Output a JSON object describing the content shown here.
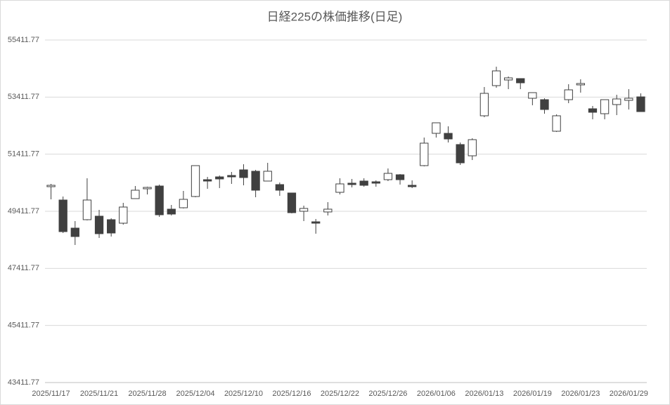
{
  "chart_data": {
    "type": "candlestick",
    "title": "日経225の株価推移(日足)",
    "categories": [
      "2025/11/17",
      null,
      null,
      null,
      "2025/11/21",
      null,
      null,
      null,
      "2025/11/28",
      null,
      null,
      null,
      "2025/12/04",
      null,
      null,
      null,
      "2025/12/10",
      null,
      null,
      null,
      "2025/12/16",
      null,
      null,
      null,
      "2025/12/22",
      null,
      null,
      null,
      "2025/12/26",
      null,
      null,
      null,
      "2026/01/06",
      null,
      null,
      null,
      "2026/01/13",
      null,
      null,
      null,
      "2026/01/19",
      null,
      null,
      null,
      "2026/01/23",
      null,
      null,
      null,
      "2026/01/29",
      null
    ],
    "open": [
      50273,
      49806,
      48822,
      49117,
      49240,
      49117,
      48994,
      49855,
      50199,
      50297,
      49486,
      49535,
      49929,
      50519,
      50617,
      50666,
      50863,
      50814,
      50470,
      50347,
      50052,
      49412,
      49043,
      49388,
      50076,
      50396,
      50470,
      50445,
      50519,
      50691,
      50322,
      51011,
      52142,
      52142,
      51749,
      51355,
      52757,
      53814,
      54011,
      54060,
      53371,
      53322,
      52216,
      53322,
      53839,
      53003,
      52830,
      53150,
      53298,
      53420
    ],
    "high": [
      50370,
      49929,
      49068,
      50568,
      49461,
      49166,
      49707,
      50297,
      50273,
      50347,
      49633,
      50125,
      51011,
      50617,
      50666,
      50789,
      51060,
      50863,
      51109,
      50420,
      50052,
      49609,
      49142,
      49732,
      50568,
      50544,
      50568,
      50494,
      50912,
      50716,
      50494,
      51995,
      52511,
      52388,
      51822,
      51970,
      53765,
      54478,
      54134,
      54060,
      53568,
      53371,
      52806,
      53863,
      54036,
      53101,
      53322,
      53494,
      53691,
      53543
    ],
    "low": [
      49830,
      48650,
      48232,
      49093,
      48478,
      48527,
      48945,
      49855,
      50002,
      49216,
      49265,
      49511,
      49904,
      50199,
      50224,
      50371,
      50322,
      49904,
      50470,
      49953,
      49339,
      49068,
      48626,
      49265,
      50002,
      50248,
      50273,
      50273,
      50470,
      50347,
      50224,
      50986,
      51995,
      51822,
      51035,
      51207,
      52708,
      53740,
      53691,
      53691,
      53126,
      52830,
      52191,
      53199,
      53568,
      52634,
      52634,
      52781,
      52978,
      52904
    ],
    "close": [
      50322,
      48699,
      48527,
      49806,
      48626,
      48650,
      49560,
      50150,
      50248,
      49289,
      49314,
      49830,
      51011,
      50470,
      50544,
      50617,
      50593,
      50150,
      50814,
      50150,
      49363,
      49511,
      48994,
      49486,
      50371,
      50347,
      50322,
      50396,
      50740,
      50519,
      50273,
      51798,
      52511,
      51945,
      51109,
      51921,
      53543,
      54330,
      54085,
      53912,
      53568,
      52978,
      52757,
      53666,
      53888,
      52880,
      53322,
      53347,
      53371,
      52904
    ],
    "up_color": "#ffffff",
    "down_color": "#404040",
    "edge_color": "#404040",
    "ylim": [
      43411.77,
      55411.77
    ],
    "yticks": [
      43411.77,
      45411.77,
      47411.77,
      49411.77,
      51411.77,
      53411.77,
      55411.77
    ],
    "grid": true
  }
}
